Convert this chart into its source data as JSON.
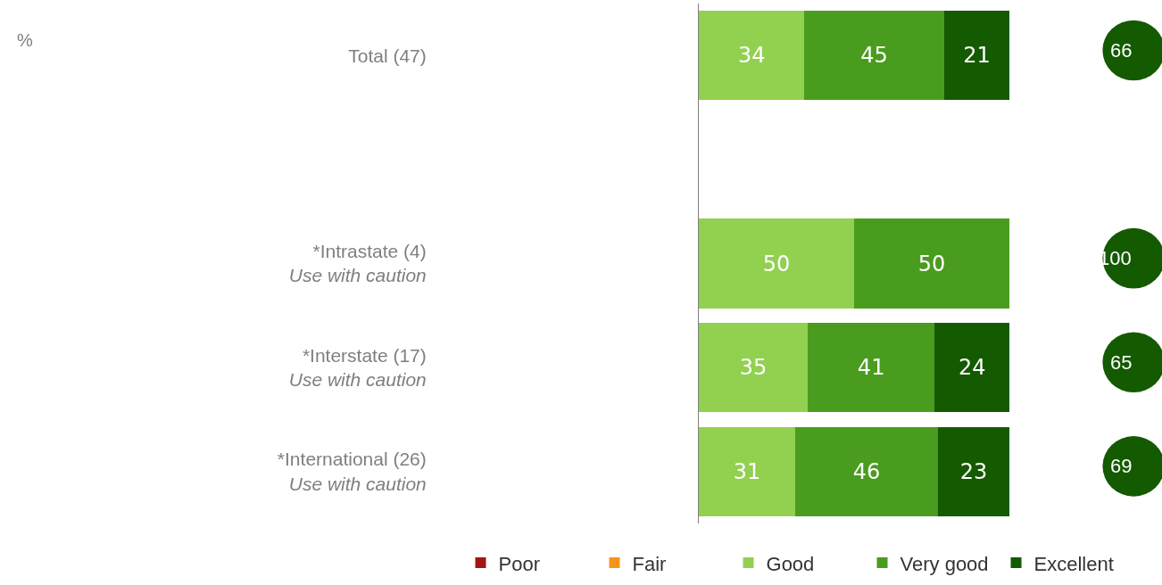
{
  "chart_data": {
    "type": "bar",
    "orientation": "horizontal",
    "stacked": true,
    "data_labels": true,
    "tick_labels": "y",
    "grid": false,
    "legend": "bottom",
    "categories": [
      "Total (47)",
      null,
      "*Intrastate (4)\nUse with caution",
      "*Interstate (17)\nUse with caution",
      "*International (26)\nUse with caution"
    ],
    "xlim": [
      0,
      100
    ],
    "series": [
      {
        "name": "Poor",
        "color": "#a31515",
        "values": [
          null,
          null,
          null,
          null,
          null
        ]
      },
      {
        "name": "Fair",
        "color": "#f7941d",
        "values": [
          null,
          null,
          null,
          null,
          null
        ]
      },
      {
        "name": "Good",
        "color": "#92d050",
        "values": [
          34,
          null,
          50,
          35,
          31
        ]
      },
      {
        "name": "Very good",
        "color": "#4a9c1e",
        "values": [
          45,
          null,
          50,
          41,
          46
        ]
      },
      {
        "name": "Excellent",
        "color": "#145a00",
        "values": [
          21,
          null,
          null,
          24,
          23
        ]
      }
    ],
    "annotations": [
      "%",
      "66",
      "100",
      "65",
      "69"
    ]
  }
}
